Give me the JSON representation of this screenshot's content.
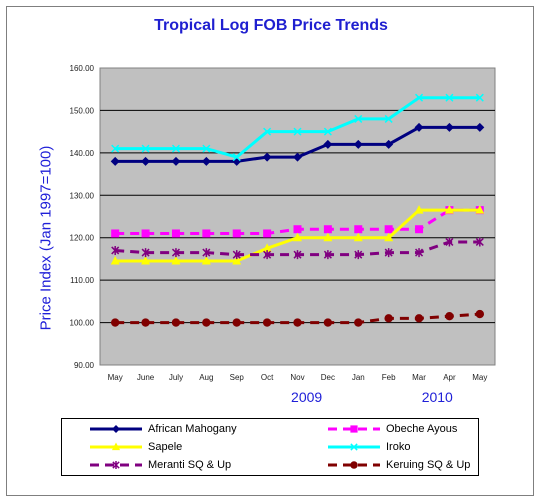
{
  "chart_data": {
    "type": "line",
    "title": "Tropical Log FOB Price Trends",
    "ylabel": "Price Index (Jan 1997=100)",
    "xlabel": "",
    "categories": [
      "May",
      "June",
      "July",
      "Aug",
      "Sep",
      "Oct",
      "Nov",
      "Dec",
      "Jan",
      "Feb",
      "Mar",
      "Apr",
      "May"
    ],
    "year_labels": [
      {
        "text": "2009",
        "at": 6.3
      },
      {
        "text": "2010",
        "at": 10.6
      }
    ],
    "ylim": [
      90,
      160
    ],
    "yticks": [
      "90.00",
      "100.00",
      "110.00",
      "120.00",
      "130.00",
      "140.00",
      "150.00",
      "160.00"
    ],
    "grid": true,
    "legend_position": "bottom",
    "series": [
      {
        "name": "African Mahogany",
        "color": "#000080",
        "marker": "diamond",
        "dash": "solid",
        "values": [
          138,
          138,
          138,
          138,
          138,
          139,
          139,
          142,
          142,
          142,
          146,
          146,
          146
        ]
      },
      {
        "name": "Obeche Ayous",
        "color": "#ff00ff",
        "marker": "square",
        "dash": "dashed",
        "values": [
          121,
          121,
          121,
          121,
          121,
          121,
          122,
          122,
          122,
          122,
          122,
          126.5,
          126.5
        ]
      },
      {
        "name": "Sapele",
        "color": "#ffff00",
        "marker": "triangle",
        "dash": "solid",
        "values": [
          114.5,
          114.5,
          114.5,
          114.5,
          114.5,
          117.5,
          120,
          120,
          120,
          120,
          126.5,
          126.5,
          126.5
        ]
      },
      {
        "name": "Iroko",
        "color": "#00ffff",
        "marker": "x",
        "dash": "solid",
        "values": [
          141,
          141,
          141,
          141,
          139,
          145,
          145,
          145,
          148,
          148,
          153,
          153,
          153
        ]
      },
      {
        "name": "Meranti SQ & Up",
        "color": "#800080",
        "marker": "star",
        "dash": "dashed",
        "values": [
          117,
          116.5,
          116.5,
          116.5,
          116,
          116,
          116,
          116,
          116,
          116.5,
          116.5,
          119,
          119
        ]
      },
      {
        "name": "Keruing SQ & Up",
        "color": "#800000",
        "marker": "circle",
        "dash": "dashed",
        "values": [
          100,
          100,
          100,
          100,
          100,
          100,
          100,
          100,
          100,
          101,
          101,
          101.5,
          102
        ]
      }
    ]
  }
}
